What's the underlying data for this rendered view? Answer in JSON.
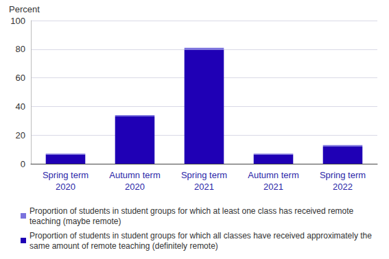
{
  "chart_data": {
    "type": "bar",
    "ylabel": "Percent",
    "categories": [
      "Spring term 2020",
      "Autumn term 2020",
      "Spring term 2021",
      "Autumn term 2021",
      "Spring term 2022"
    ],
    "series": [
      {
        "name": "Proportion of students in student groups for which all classes have received approximately the same amount of remote teaching (definitely remote)",
        "color": "#1f00b5",
        "values": [
          6.5,
          33,
          79.5,
          6.5,
          12
        ]
      },
      {
        "name": "Proportion of students in student groups for which at least one class has received remote teaching (maybe remote)",
        "color": "#7a72dd",
        "values": [
          0.5,
          1,
          1.5,
          0.5,
          1
        ]
      }
    ],
    "ylim": [
      0,
      100
    ],
    "yticks": [
      0,
      20,
      40,
      60,
      80,
      100
    ],
    "stacked": true,
    "grid": true,
    "legend": "bottom",
    "data_labels": false
  }
}
